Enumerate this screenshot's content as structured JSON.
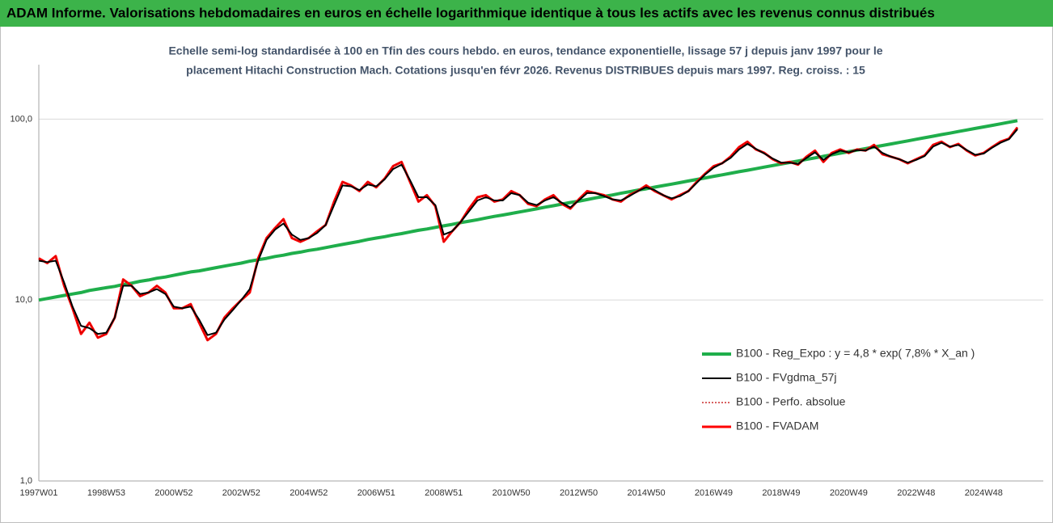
{
  "chart_data": {
    "type": "line",
    "header": "ADAM Informe. Valorisations hebdomadaires en euros en échelle logarithmique identique à tous les actifs avec les revenus connus distribués",
    "title": [
      "Echelle semi-log standardisée à 100 en Tfin des cours hebdo. en euros, tendance exponentielle, lissage 57 j depuis janv 1997 pour le",
      "placement Hitachi Construction Mach. Cotations jusqu'en févr 2026. Revenus DISTRIBUES depuis mars 1997. Reg. croiss. : 15"
    ],
    "log_scale": true,
    "grid": true,
    "legend": "lower right",
    "ylim": [
      1,
      200
    ],
    "yticks": [
      {
        "value": 1,
        "label": "1,0"
      },
      {
        "value": 10,
        "label": "10,0"
      },
      {
        "value": 100,
        "label": "100,0"
      }
    ],
    "categories": [
      "1997W01",
      null,
      null,
      null,
      null,
      null,
      null,
      null,
      "1998W53",
      null,
      null,
      null,
      null,
      null,
      null,
      null,
      "2000W52",
      null,
      null,
      null,
      null,
      null,
      null,
      null,
      "2002W52",
      null,
      null,
      null,
      null,
      null,
      null,
      null,
      "2004W52",
      null,
      null,
      null,
      null,
      null,
      null,
      null,
      "2006W51",
      null,
      null,
      null,
      null,
      null,
      null,
      null,
      "2008W51",
      null,
      null,
      null,
      null,
      null,
      null,
      null,
      "2010W50",
      null,
      null,
      null,
      null,
      null,
      null,
      null,
      "2012W50",
      null,
      null,
      null,
      null,
      null,
      null,
      null,
      "2014W50",
      null,
      null,
      null,
      null,
      null,
      null,
      null,
      "2016W49",
      null,
      null,
      null,
      null,
      null,
      null,
      null,
      "2018W49",
      null,
      null,
      null,
      null,
      null,
      null,
      null,
      "2020W49",
      null,
      null,
      null,
      null,
      null,
      null,
      null,
      "2022W48",
      null,
      null,
      null,
      null,
      null,
      null,
      null,
      "2024W48",
      null,
      null,
      null,
      null
    ],
    "series": [
      {
        "name": "B100 - Reg_Expo : y = 4,8 * exp( 7,8% *  X_an )",
        "color": "#1fae4b",
        "values": [
          10.0,
          10.2,
          10.4,
          10.6,
          10.8,
          11.0,
          11.3,
          11.5,
          11.7,
          11.9,
          12.2,
          12.4,
          12.7,
          12.9,
          13.2,
          13.4,
          13.7,
          14.0,
          14.3,
          14.5,
          14.8,
          15.1,
          15.4,
          15.7,
          16.0,
          16.4,
          16.7,
          17.0,
          17.4,
          17.7,
          18.1,
          18.4,
          18.8,
          19.1,
          19.5,
          19.9,
          20.3,
          20.7,
          21.1,
          21.6,
          22.0,
          22.4,
          22.9,
          23.3,
          23.8,
          24.3,
          24.7,
          25.2,
          25.7,
          26.2,
          26.8,
          27.3,
          27.8,
          28.4,
          29.0,
          29.5,
          30.1,
          30.7,
          31.3,
          31.9,
          32.6,
          33.2,
          33.9,
          34.6,
          35.2,
          35.9,
          36.7,
          37.4,
          38.1,
          38.9,
          39.7,
          40.5,
          41.2,
          42.1,
          42.9,
          43.7,
          44.6,
          45.5,
          46.4,
          47.3,
          48.3,
          49.2,
          50.2,
          51.2,
          52.2,
          53.2,
          54.3,
          55.4,
          56.5,
          57.6,
          58.7,
          59.9,
          61.1,
          62.3,
          63.5,
          64.8,
          66.1,
          67.4,
          68.7,
          70.1,
          71.5,
          72.9,
          74.3,
          75.8,
          77.4,
          78.9,
          80.5,
          82.1,
          83.7,
          85.4,
          87.1,
          88.8,
          90.6,
          92.4,
          94.2,
          96.1,
          98.0
        ]
      },
      {
        "name": "B100 - FVgdma_57j",
        "color": "#000000",
        "values": [
          16.5,
          16.2,
          16.5,
          12.5,
          9.2,
          7.2,
          7.0,
          6.5,
          6.6,
          8.0,
          12.0,
          12.0,
          10.8,
          11.0,
          11.5,
          10.8,
          9.2,
          9.0,
          9.2,
          7.8,
          6.4,
          6.6,
          7.8,
          8.8,
          10.0,
          11.5,
          16.5,
          21.5,
          24.5,
          26.5,
          23.0,
          21.5,
          22.0,
          23.5,
          26.0,
          33.5,
          43.0,
          42.5,
          40.5,
          43.5,
          42.5,
          46.5,
          53.0,
          56.0,
          46.0,
          37.0,
          37.0,
          33.5,
          23.0,
          24.0,
          27.0,
          31.0,
          35.5,
          37.0,
          35.5,
          35.5,
          39.0,
          38.0,
          34.5,
          33.5,
          35.5,
          37.0,
          34.5,
          32.5,
          35.5,
          39.0,
          39.0,
          37.5,
          36.0,
          35.5,
          37.5,
          40.0,
          42.0,
          40.5,
          38.0,
          36.5,
          37.5,
          40.0,
          44.5,
          49.5,
          54.0,
          57.0,
          61.0,
          68.0,
          73.0,
          68.5,
          64.5,
          60.5,
          57.5,
          57.5,
          56.5,
          61.0,
          65.5,
          59.5,
          64.0,
          67.0,
          65.5,
          67.5,
          67.0,
          70.5,
          65.0,
          62.0,
          60.0,
          57.5,
          59.5,
          62.5,
          70.5,
          74.0,
          70.5,
          72.0,
          67.5,
          63.5,
          64.5,
          69.5,
          74.0,
          77.5,
          88.0
        ]
      },
      {
        "name": "B100 - Perfo. absolue",
        "color": "#c00000",
        "values": [
          17,
          16,
          17.5,
          12,
          9,
          6.5,
          7.5,
          6.2,
          6.5,
          8,
          13,
          12,
          10.5,
          11,
          12,
          11,
          9,
          9,
          9.5,
          7.5,
          6,
          6.5,
          8,
          9,
          10,
          11,
          17,
          22,
          25,
          28,
          22,
          21,
          22,
          24,
          26,
          35,
          45,
          43,
          40,
          45,
          42,
          47,
          55,
          58,
          45,
          35,
          38,
          33,
          21,
          24,
          27,
          32,
          37,
          38,
          35,
          36,
          40,
          38,
          34,
          33,
          36,
          38,
          34,
          32,
          36,
          40,
          39,
          38,
          36,
          35,
          38,
          40,
          43,
          40,
          38,
          36,
          38,
          40,
          45,
          50,
          55,
          57,
          62,
          70,
          75,
          68,
          65,
          60,
          57,
          58,
          56,
          62,
          67,
          58,
          65,
          68,
          65,
          68,
          67,
          72,
          64,
          62,
          60,
          57,
          60,
          63,
          72,
          75,
          70,
          73,
          67,
          63,
          65,
          70,
          75,
          78,
          90
        ]
      },
      {
        "name": "B100 - FVADAM",
        "color": "#ff0000",
        "values": [
          17,
          16,
          17.5,
          12,
          9,
          6.5,
          7.5,
          6.2,
          6.5,
          8,
          13,
          12,
          10.5,
          11,
          12,
          11,
          9,
          9,
          9.5,
          7.5,
          6,
          6.5,
          8,
          9,
          10,
          11,
          17,
          22,
          25,
          28,
          22,
          21,
          22,
          24,
          26,
          35,
          45,
          43,
          40,
          45,
          42,
          47,
          55,
          58,
          45,
          35,
          38,
          33,
          21,
          24,
          27,
          32,
          37,
          38,
          35,
          36,
          40,
          38,
          34,
          33,
          36,
          38,
          34,
          32,
          36,
          40,
          39,
          38,
          36,
          35,
          38,
          40,
          43,
          40,
          38,
          36,
          38,
          40,
          45,
          50,
          55,
          57,
          62,
          70,
          75,
          68,
          65,
          60,
          57,
          58,
          56,
          62,
          67,
          58,
          65,
          68,
          65,
          68,
          67,
          72,
          64,
          62,
          60,
          57,
          60,
          63,
          72,
          75,
          70,
          73,
          67,
          63,
          65,
          70,
          75,
          78,
          90
        ]
      }
    ]
  }
}
